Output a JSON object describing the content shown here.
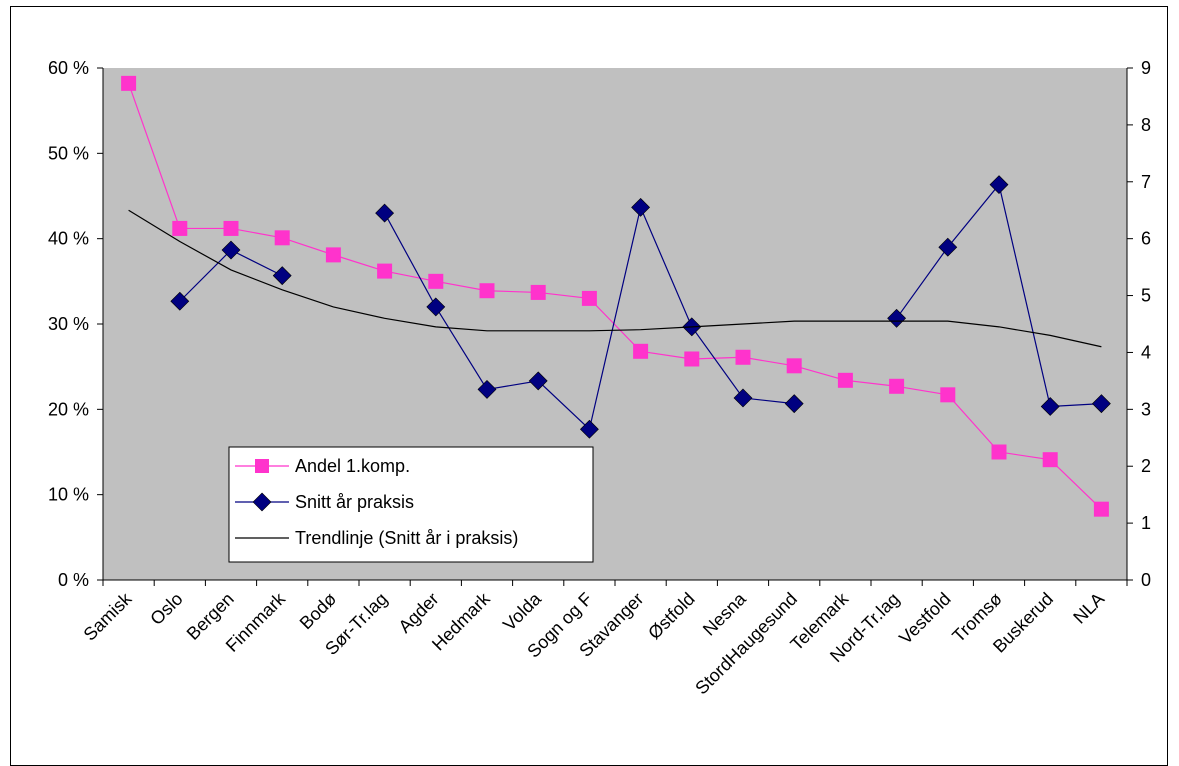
{
  "chart_data": {
    "type": "line",
    "categories": [
      "Samisk",
      "Oslo",
      "Bergen",
      "Finnmark",
      "Bodø",
      "Sør-Tr.lag",
      "Agder",
      "Hedmark",
      "Volda",
      "Sogn og F",
      "Stavanger",
      "Østfold",
      "Nesna",
      "Stord/Haugesund",
      "Telemark",
      "Nord-Tr.lag",
      "Vestfold",
      "Tromsø",
      "Buskerud",
      "NLA"
    ],
    "x_tick_labels": [
      "Samisk",
      "Oslo",
      "Bergen",
      "Finnmark",
      "Bodø",
      "Sør-Tr.lag",
      "Agder",
      "Hedmark",
      "Volda",
      "Sogn og F",
      "Stavanger",
      "Østfold",
      "Nesna",
      "StordHaugesund",
      "Telemark",
      "Nord-Tr.lag",
      "Vestfold",
      "Tromsø",
      "Buskerud",
      "NLA"
    ],
    "y_left": {
      "ylim": [
        0,
        60
      ],
      "ticks": [
        "0 %",
        "10 %",
        "20 %",
        "30 %",
        "40 %",
        "50 %",
        "60 %"
      ]
    },
    "y_right": {
      "ylim": [
        0,
        9
      ],
      "ticks": [
        "0",
        "1",
        "2",
        "3",
        "4",
        "5",
        "6",
        "7",
        "8",
        "9"
      ]
    },
    "grid": false,
    "background_color": "#c0c0c0",
    "legend_placement": "lower-left inside plot",
    "series": [
      {
        "name": "Andel 1.komp.",
        "axis": "left",
        "color": "#ff33cc",
        "marker": "square",
        "values": [
          58.2,
          41.2,
          41.2,
          40.1,
          38.1,
          36.2,
          35.0,
          33.9,
          33.7,
          33.0,
          26.8,
          25.9,
          26.1,
          25.1,
          23.4,
          22.7,
          21.7,
          15.0,
          14.1,
          8.3
        ]
      },
      {
        "name": "Snitt år praksis",
        "axis": "right",
        "color": "#000080",
        "marker": "diamond",
        "values": [
          null,
          4.9,
          5.8,
          5.35,
          null,
          6.45,
          4.8,
          3.35,
          3.5,
          2.65,
          6.55,
          4.45,
          3.2,
          3.1,
          null,
          4.6,
          5.85,
          6.95,
          3.05,
          3.1
        ]
      },
      {
        "name": "Trendlinje (Snitt år i praksis)",
        "axis": "right",
        "color": "#000000",
        "marker": "none",
        "values": [
          6.5,
          5.95,
          5.45,
          5.1,
          4.8,
          4.6,
          4.45,
          4.38,
          4.38,
          4.38,
          4.4,
          4.45,
          4.5,
          4.55,
          4.55,
          4.55,
          4.55,
          4.45,
          4.3,
          4.1
        ]
      }
    ]
  }
}
